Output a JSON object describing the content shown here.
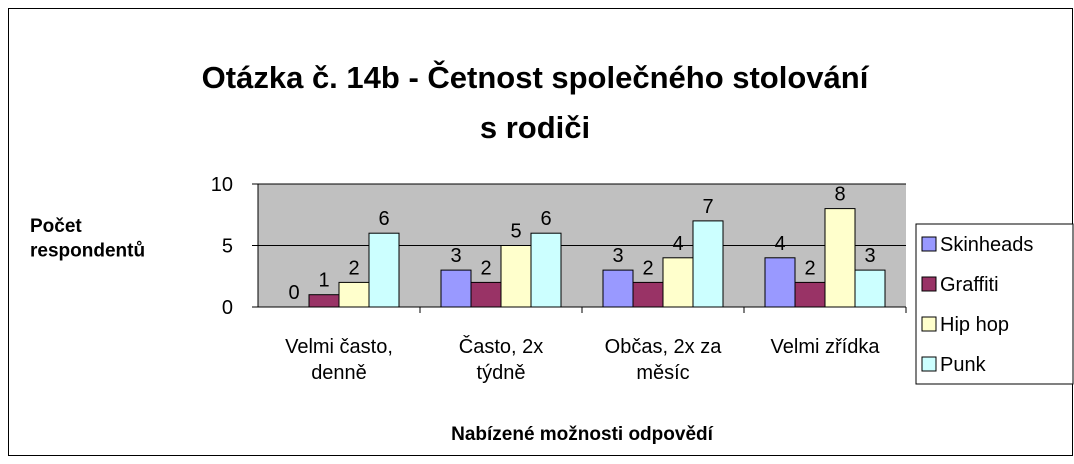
{
  "chart_data": {
    "type": "bar",
    "title": [
      "Otázka č. 14b - Četnost společného stolování",
      "s rodiči"
    ],
    "y_label": "Počet\nrespondentů",
    "x_label": "Nabízené možnosti odpovědí",
    "categories": [
      "Velmi často,\ndenně",
      "Často, 2x\ntýdně",
      "Občas, 2x za\nměsíc",
      "Velmi zřídka"
    ],
    "series": [
      {
        "name": "Skinheads",
        "color": "#9999ff",
        "values": [
          0,
          3,
          3,
          4
        ]
      },
      {
        "name": "Graffiti",
        "color": "#993366",
        "values": [
          1,
          2,
          2,
          2
        ]
      },
      {
        "name": "Hip hop",
        "color": "#ffffcc",
        "values": [
          2,
          5,
          4,
          8
        ]
      },
      {
        "name": "Punk",
        "color": "#ccffff",
        "values": [
          6,
          6,
          7,
          3
        ]
      }
    ],
    "ylim": [
      0,
      10
    ],
    "yticks": [
      0,
      5,
      10
    ],
    "grid": true,
    "legend": "right",
    "plot_background": "#c0c0c0"
  }
}
